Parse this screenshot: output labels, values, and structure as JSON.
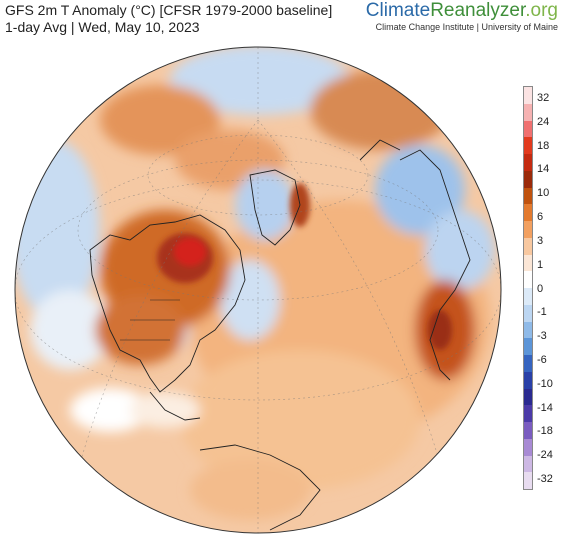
{
  "header": {
    "title": "GFS 2m T Anomaly (°C) [CFSR 1979-2000 baseline]",
    "subtitle": "1-day Avg | Wed, May 10, 2023"
  },
  "brand": {
    "name_part1": "Climate",
    "name_part2": "Reanalyzer",
    "name_part3": ".org",
    "affiliation": "Climate Change Institute | University of Maine"
  },
  "colorbar": {
    "labels": [
      "32",
      "24",
      "18",
      "14",
      "10",
      "6",
      "3",
      "1",
      "0",
      "-1",
      "-3",
      "-6",
      "-10",
      "-14",
      "-18",
      "-24",
      "-32"
    ],
    "colors": [
      "#fbe3e3",
      "#f6b2b2",
      "#f07070",
      "#e23a1e",
      "#c42a10",
      "#9b2a0a",
      "#c0520e",
      "#e37a2e",
      "#f2a060",
      "#f8c8a0",
      "#fbe6d6",
      "#ffffff",
      "#dceaf8",
      "#bcd6f2",
      "#8fbae8",
      "#5c95d8",
      "#3564c0",
      "#2940a8",
      "#2a2a90",
      "#4b3aa8",
      "#7a5cc0",
      "#a88ad4",
      "#cdb8e4",
      "#e8dcf0"
    ]
  },
  "map": {
    "projection": "orthographic",
    "center": "North Atlantic",
    "palette": {
      "warm_strong": "#b2400f",
      "warm_medium": "#e07a35",
      "warm_light": "#f5b985",
      "neutral": "#f7f2ee",
      "cool_light": "#b9d3ee",
      "cool_medium": "#7eaee3",
      "cool_strong": "#4d82cc",
      "hot_spot": "#d01c1c"
    }
  }
}
